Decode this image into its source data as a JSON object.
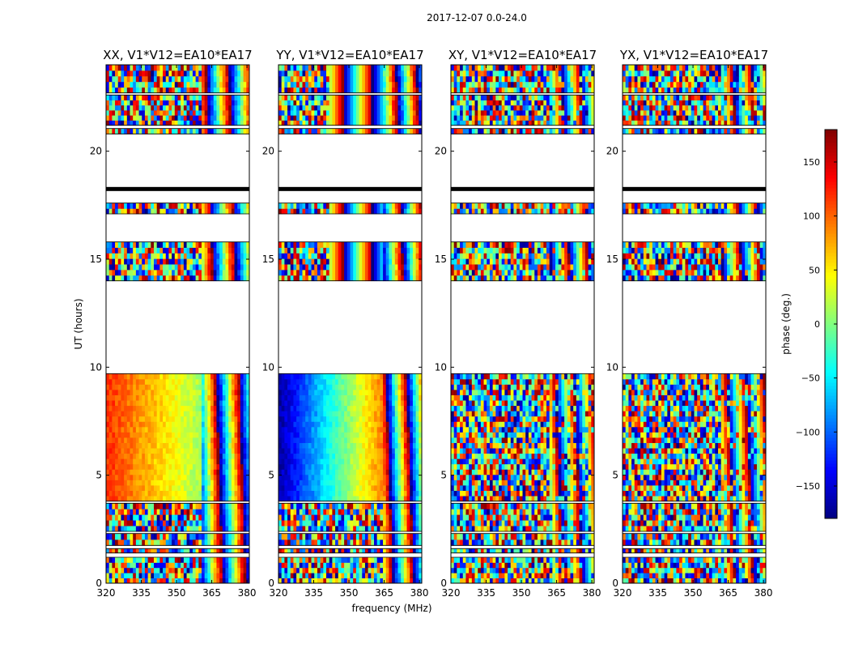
{
  "figure": {
    "suptitle": "2017-12-07 0.0-24.0"
  },
  "chart_data": {
    "type": "heatmap",
    "title": "2017-12-07 0.0-24.0",
    "xlabel": "frequency (MHz)",
    "ylabel": "UT (hours)",
    "xlim": [
      320,
      381
    ],
    "ylim": [
      0,
      24
    ],
    "xticks": [
      "320",
      "335",
      "350",
      "365",
      "380"
    ],
    "xtick_values": [
      320,
      335,
      350,
      365,
      380
    ],
    "yticks": [
      "0",
      "5",
      "10",
      "15",
      "20"
    ],
    "ytick_values": [
      0,
      5,
      10,
      15,
      20
    ],
    "panels": [
      {
        "title": "XX, V1*V12=EA10*EA17",
        "pol": "XX"
      },
      {
        "title": "YY, V1*V12=EA10*EA17",
        "pol": "YY"
      },
      {
        "title": "XY, V1*V12=EA10*EA17",
        "pol": "XY"
      },
      {
        "title": "YX, V1*V12=EA10*EA17",
        "pol": "YX"
      }
    ],
    "colorbar": {
      "label": "phase (deg.)",
      "range": [
        -180,
        180
      ],
      "ticks": [
        "150",
        "100",
        "50",
        "0",
        "−50",
        "−100",
        "−150"
      ],
      "tick_values": [
        150,
        100,
        50,
        0,
        -50,
        -100,
        -150
      ],
      "colormap": "jet"
    },
    "data_segments_ut": [
      [
        0.0,
        1.2
      ],
      [
        1.4,
        1.6
      ],
      [
        1.75,
        2.3
      ],
      [
        2.4,
        3.7
      ],
      [
        3.8,
        9.7
      ],
      [
        14.0,
        15.8
      ],
      [
        17.1,
        17.6
      ],
      [
        20.8,
        21.05
      ],
      [
        21.2,
        22.6
      ],
      [
        22.7,
        24.0
      ]
    ],
    "flagged_lines_ut": [
      18.25
    ]
  },
  "colors": {
    "axis": "#000000",
    "background": "#ffffff"
  }
}
